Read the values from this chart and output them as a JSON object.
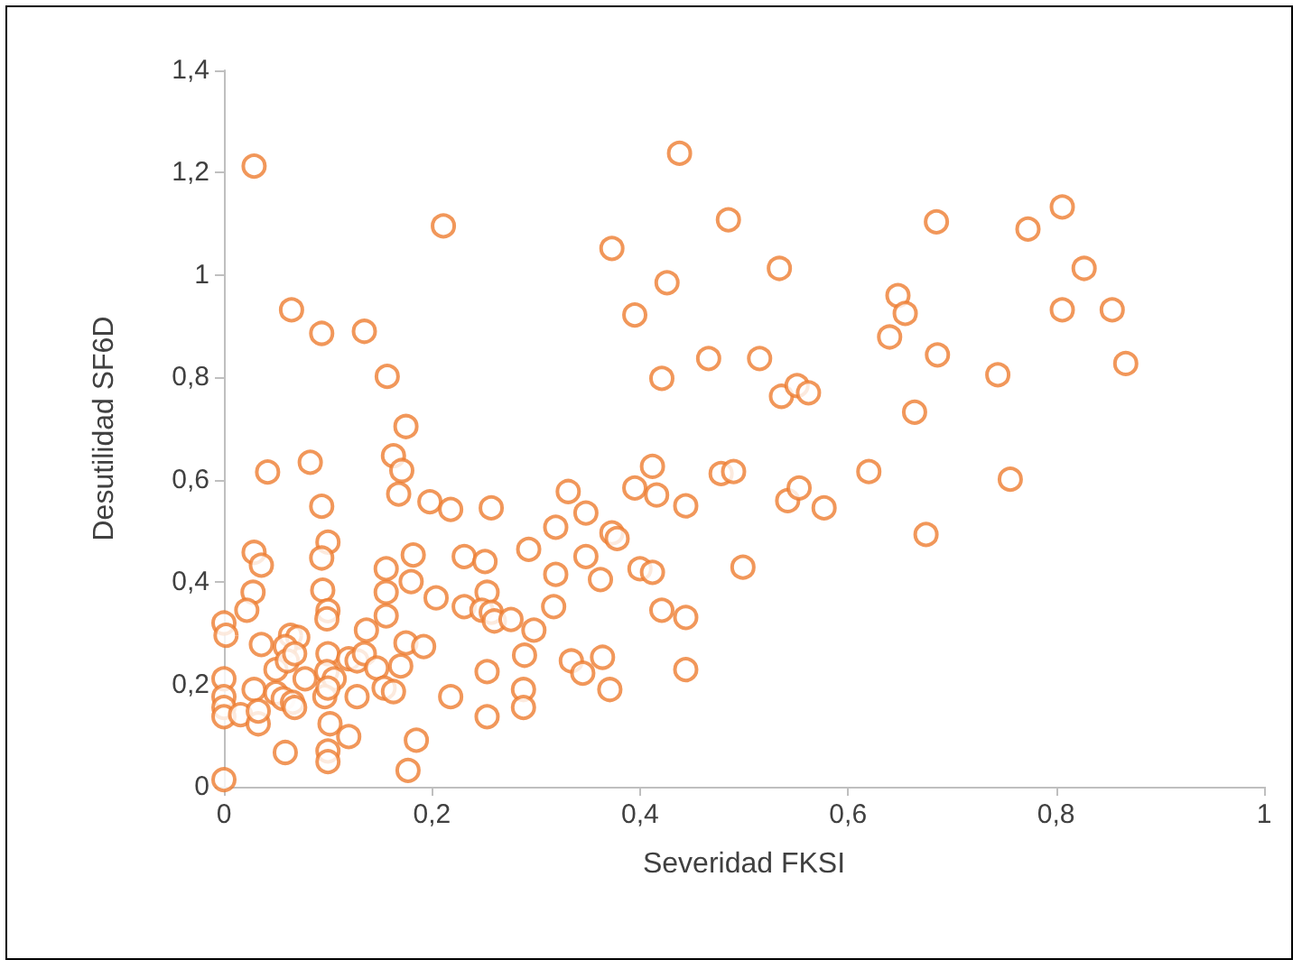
{
  "chart_data": {
    "type": "scatter",
    "xlabel": "Severidad FKSI",
    "ylabel": "Desutilidad SF6D",
    "marker": "circle",
    "grid": false,
    "xlim": [
      0,
      1
    ],
    "xticks": [
      0,
      {
        "value": 0.2,
        "label": "0,2"
      },
      {
        "value": 0.4,
        "label": "0,4"
      },
      {
        "value": 0.6,
        "label": "0,6"
      },
      {
        "value": 0.8,
        "label": "0,8"
      },
      1
    ],
    "ylim": [
      0,
      1.4
    ],
    "yticks": [
      0,
      {
        "value": 0.2,
        "label": "0,2"
      },
      {
        "value": 0.4,
        "label": "0,4"
      },
      {
        "value": 0.6,
        "label": "0,6"
      },
      {
        "value": 0.8,
        "label": "0,8"
      },
      1,
      {
        "value": 1.2,
        "label": "1,2"
      },
      {
        "value": 1.4,
        "label": "1,4"
      }
    ],
    "series": [
      {
        "color": "#ed7d31",
        "x": [
          0.293,
          0.331,
          0.348,
          0.319,
          0.373,
          0.378,
          0.348,
          0.319,
          0.362,
          0.317,
          0.298,
          0.289,
          0.334,
          0.345,
          0.364,
          0.371,
          0.288,
          0.288,
          0.395,
          0.412,
          0.416,
          0.444,
          0.478,
          0.49,
          0.4,
          0.412,
          0.499,
          0.421,
          0.444,
          0.444,
          0.542,
          0.553,
          0.577,
          0.62,
          0.438,
          0.485,
          0.373,
          0.426,
          0.395,
          0.534,
          0.421,
          0.466,
          0.515,
          0.536,
          0.551,
          0.562,
          0.648,
          0.655,
          0.64,
          0.685,
          0.686,
          0.664,
          0.744,
          0.773,
          0.806,
          0.806,
          0.827,
          0.854,
          0.867,
          0.756,
          0.675,
          0.029,
          0.211,
          0.065,
          0.094,
          0.135,
          0.157,
          0.175,
          0.163,
          0.042,
          0.083,
          0.171,
          0.168,
          0.094,
          0.198,
          0.218,
          0.257,
          0.1,
          0.094,
          0.029,
          0.036,
          0.028,
          0.022,
          0.095,
          0.1,
          0.099,
          0.156,
          0.182,
          0.18,
          0.156,
          0.156,
          0.204,
          0.231,
          0.251,
          0.231,
          0.253,
          0.248,
          0.257,
          0.26,
          0.276,
          0,
          0.002,
          0,
          0,
          0,
          0,
          0.016,
          0.036,
          0.064,
          0.071,
          0.059,
          0.05,
          0.061,
          0.068,
          0.029,
          0.05,
          0.057,
          0.066,
          0.068,
          0.033,
          0.033,
          0.078,
          0.1,
          0.099,
          0.106,
          0.097,
          0.1,
          0.12,
          0.128,
          0.135,
          0.137,
          0.147,
          0.128,
          0.102,
          0.12,
          0.1,
          0.1,
          0.059,
          0.185,
          0.177,
          0,
          0.175,
          0.192,
          0.17,
          0.154,
          0.163,
          0.218,
          0.253,
          0.253
        ],
        "values": [
          0.464,
          0.577,
          0.535,
          0.507,
          0.496,
          0.485,
          0.45,
          0.415,
          0.405,
          0.352,
          0.306,
          0.257,
          0.246,
          0.222,
          0.253,
          0.19,
          0.19,
          0.155,
          0.584,
          0.626,
          0.57,
          0.549,
          0.612,
          0.616,
          0.426,
          0.419,
          0.429,
          0.345,
          0.331,
          0.229,
          0.559,
          0.584,
          0.545,
          0.616,
          1.238,
          1.108,
          1.052,
          0.985,
          0.922,
          1.013,
          0.798,
          0.837,
          0.837,
          0.763,
          0.784,
          0.77,
          0.96,
          0.925,
          0.879,
          1.104,
          0.844,
          0.732,
          0.805,
          1.09,
          1.133,
          0.932,
          1.013,
          0.932,
          0.827,
          0.601,
          0.493,
          1.213,
          1.096,
          0.932,
          0.886,
          0.89,
          0.802,
          0.704,
          0.647,
          0.615,
          0.634,
          0.618,
          0.572,
          0.548,
          0.557,
          0.542,
          0.545,
          0.478,
          0.447,
          0.458,
          0.433,
          0.38,
          0.345,
          0.384,
          0.344,
          0.328,
          0.426,
          0.453,
          0.401,
          0.38,
          0.334,
          0.369,
          0.45,
          0.44,
          0.352,
          0.38,
          0.345,
          0.341,
          0.324,
          0.327,
          0.32,
          0.296,
          0.211,
          0.176,
          0.155,
          0.137,
          0.141,
          0.278,
          0.296,
          0.292,
          0.274,
          0.229,
          0.246,
          0.26,
          0.19,
          0.183,
          0.172,
          0.165,
          0.155,
          0.123,
          0.148,
          0.211,
          0.26,
          0.225,
          0.211,
          0.176,
          0.193,
          0.25,
          0.246,
          0.26,
          0.306,
          0.232,
          0.176,
          0.123,
          0.098,
          0.07,
          0.049,
          0.067,
          0.091,
          0.032,
          0.014,
          0.281,
          0.274,
          0.236,
          0.193,
          0.186,
          0.176,
          0.225,
          0.137
        ]
      }
    ]
  }
}
